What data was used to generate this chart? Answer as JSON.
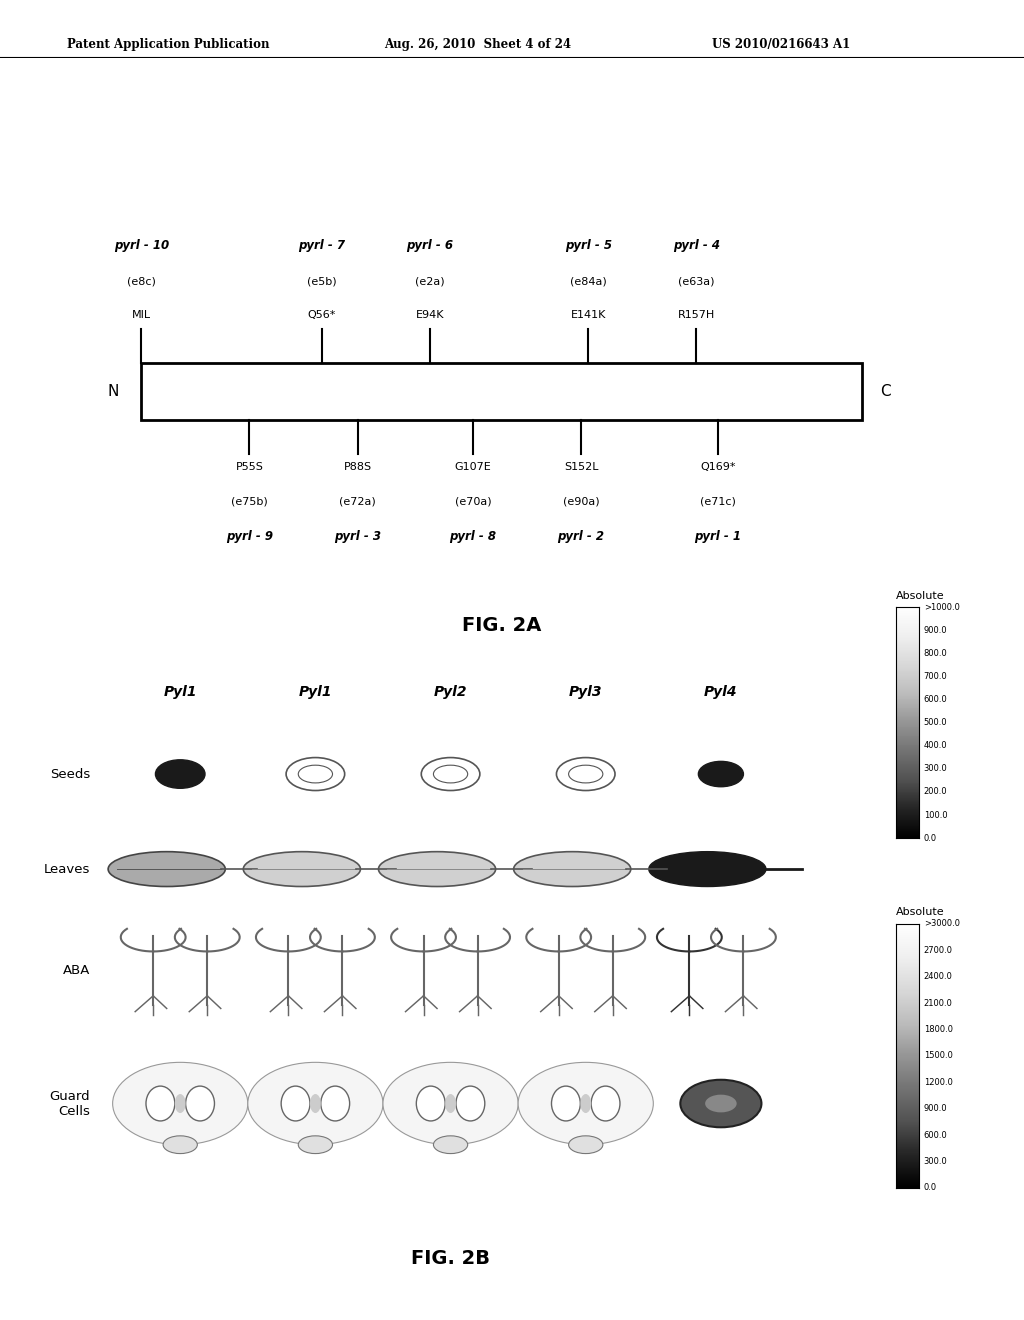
{
  "header_left": "Patent Application Publication",
  "header_mid": "Aug. 26, 2010  Sheet 4 of 24",
  "header_right": "US 2010/0216643 A1",
  "fig2a": {
    "title": "FIG. 2A",
    "top_data": [
      [
        "pyrl - 10",
        "(e8c)",
        "MIL",
        0.0
      ],
      [
        "pyrl - 7",
        "(e5b)",
        "Q56*",
        0.25
      ],
      [
        "pyrl - 6",
        "(e2a)",
        "E94K",
        0.4
      ],
      [
        "pyrl - 5",
        "(e84a)",
        "E141K",
        0.62
      ],
      [
        "pyrl - 4",
        "(e63a)",
        "R157H",
        0.77
      ]
    ],
    "bottom_data": [
      [
        "pyrl - 9",
        "(e75b)",
        "P55S",
        0.15
      ],
      [
        "pyrl - 3",
        "(e72a)",
        "P88S",
        0.3
      ],
      [
        "pyrl - 8",
        "(e70a)",
        "G107E",
        0.46
      ],
      [
        "pyrl - 2",
        "(e90a)",
        "S152L",
        0.61
      ],
      [
        "pyrl - 1",
        "(e71c)",
        "Q169*",
        0.8
      ]
    ]
  },
  "fig2b": {
    "title": "FIG. 2B",
    "col_headers": [
      "Pyl1",
      "Pyl1",
      "Pyl2",
      "Pyl3",
      "Pyl4"
    ],
    "row_labels": [
      "Seeds",
      "Leaves",
      "ABA",
      "Guard\nCells"
    ],
    "colorbar1_label": "Absolute",
    "colorbar1_ticks": [
      ">1000.0",
      "900.0",
      "800.0",
      "700.0",
      "600.0",
      "500.0",
      "400.0",
      "300.0",
      "200.0",
      "100.0",
      "0.0"
    ],
    "colorbar2_label": "Absolute",
    "colorbar2_ticks": [
      ">3000.0",
      "2700.0",
      "2400.0",
      "2100.0",
      "1800.0",
      "1500.0",
      "1200.0",
      "900.0",
      "600.0",
      "300.0",
      "0.0"
    ]
  }
}
